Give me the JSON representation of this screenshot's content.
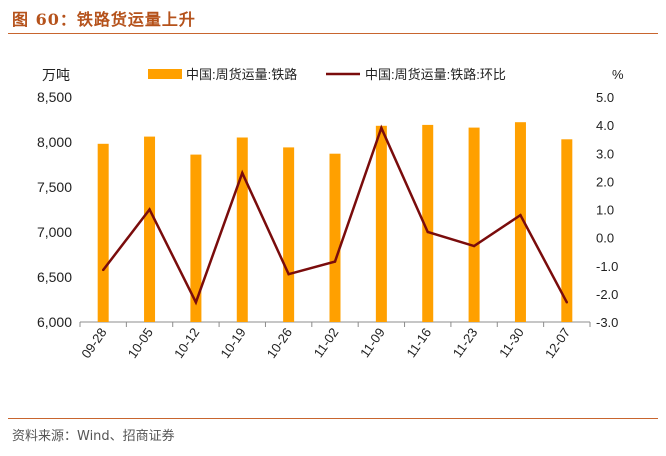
{
  "header": {
    "title": "图 60：铁路货运量上升"
  },
  "footer": {
    "source": "资料来源：Wind、招商证券"
  },
  "chart_data": {
    "type": "bar+line",
    "categories": [
      "09-28",
      "10-05",
      "10-12",
      "10-19",
      "10-26",
      "11-02",
      "11-09",
      "11-16",
      "11-23",
      "11-30",
      "12-07"
    ],
    "left_axis": {
      "unit": "万吨",
      "ylim": [
        6000,
        8500
      ],
      "ticks": [
        6000,
        6500,
        7000,
        7500,
        8000,
        8500
      ],
      "tick_labels": [
        "6,000",
        "6,500",
        "7,000",
        "7,500",
        "8,000",
        "8,500"
      ]
    },
    "right_axis": {
      "unit": "%",
      "ylim": [
        -3.0,
        5.0
      ],
      "ticks": [
        -3.0,
        -2.0,
        -1.0,
        0.0,
        1.0,
        2.0,
        3.0,
        4.0,
        5.0
      ],
      "tick_labels": [
        "-3.0",
        "-2.0",
        "-1.0",
        "0.0",
        "1.0",
        "2.0",
        "3.0",
        "4.0",
        "5.0"
      ]
    },
    "series": [
      {
        "name": "中国:周货运量:铁路",
        "type": "bar",
        "axis": "left",
        "color": "#ffa000",
        "values": [
          7980,
          8060,
          7860,
          8050,
          7940,
          7870,
          8180,
          8190,
          8160,
          8220,
          8030
        ]
      },
      {
        "name": "中国:周货运量:铁路:环比",
        "type": "line",
        "axis": "right",
        "color": "#7a0c0c",
        "values": [
          -1.15,
          1.0,
          -2.3,
          2.3,
          -1.3,
          -0.85,
          3.9,
          0.2,
          -0.3,
          0.8,
          -2.3
        ]
      }
    ],
    "legend": {
      "position": "top"
    },
    "grid": false
  }
}
